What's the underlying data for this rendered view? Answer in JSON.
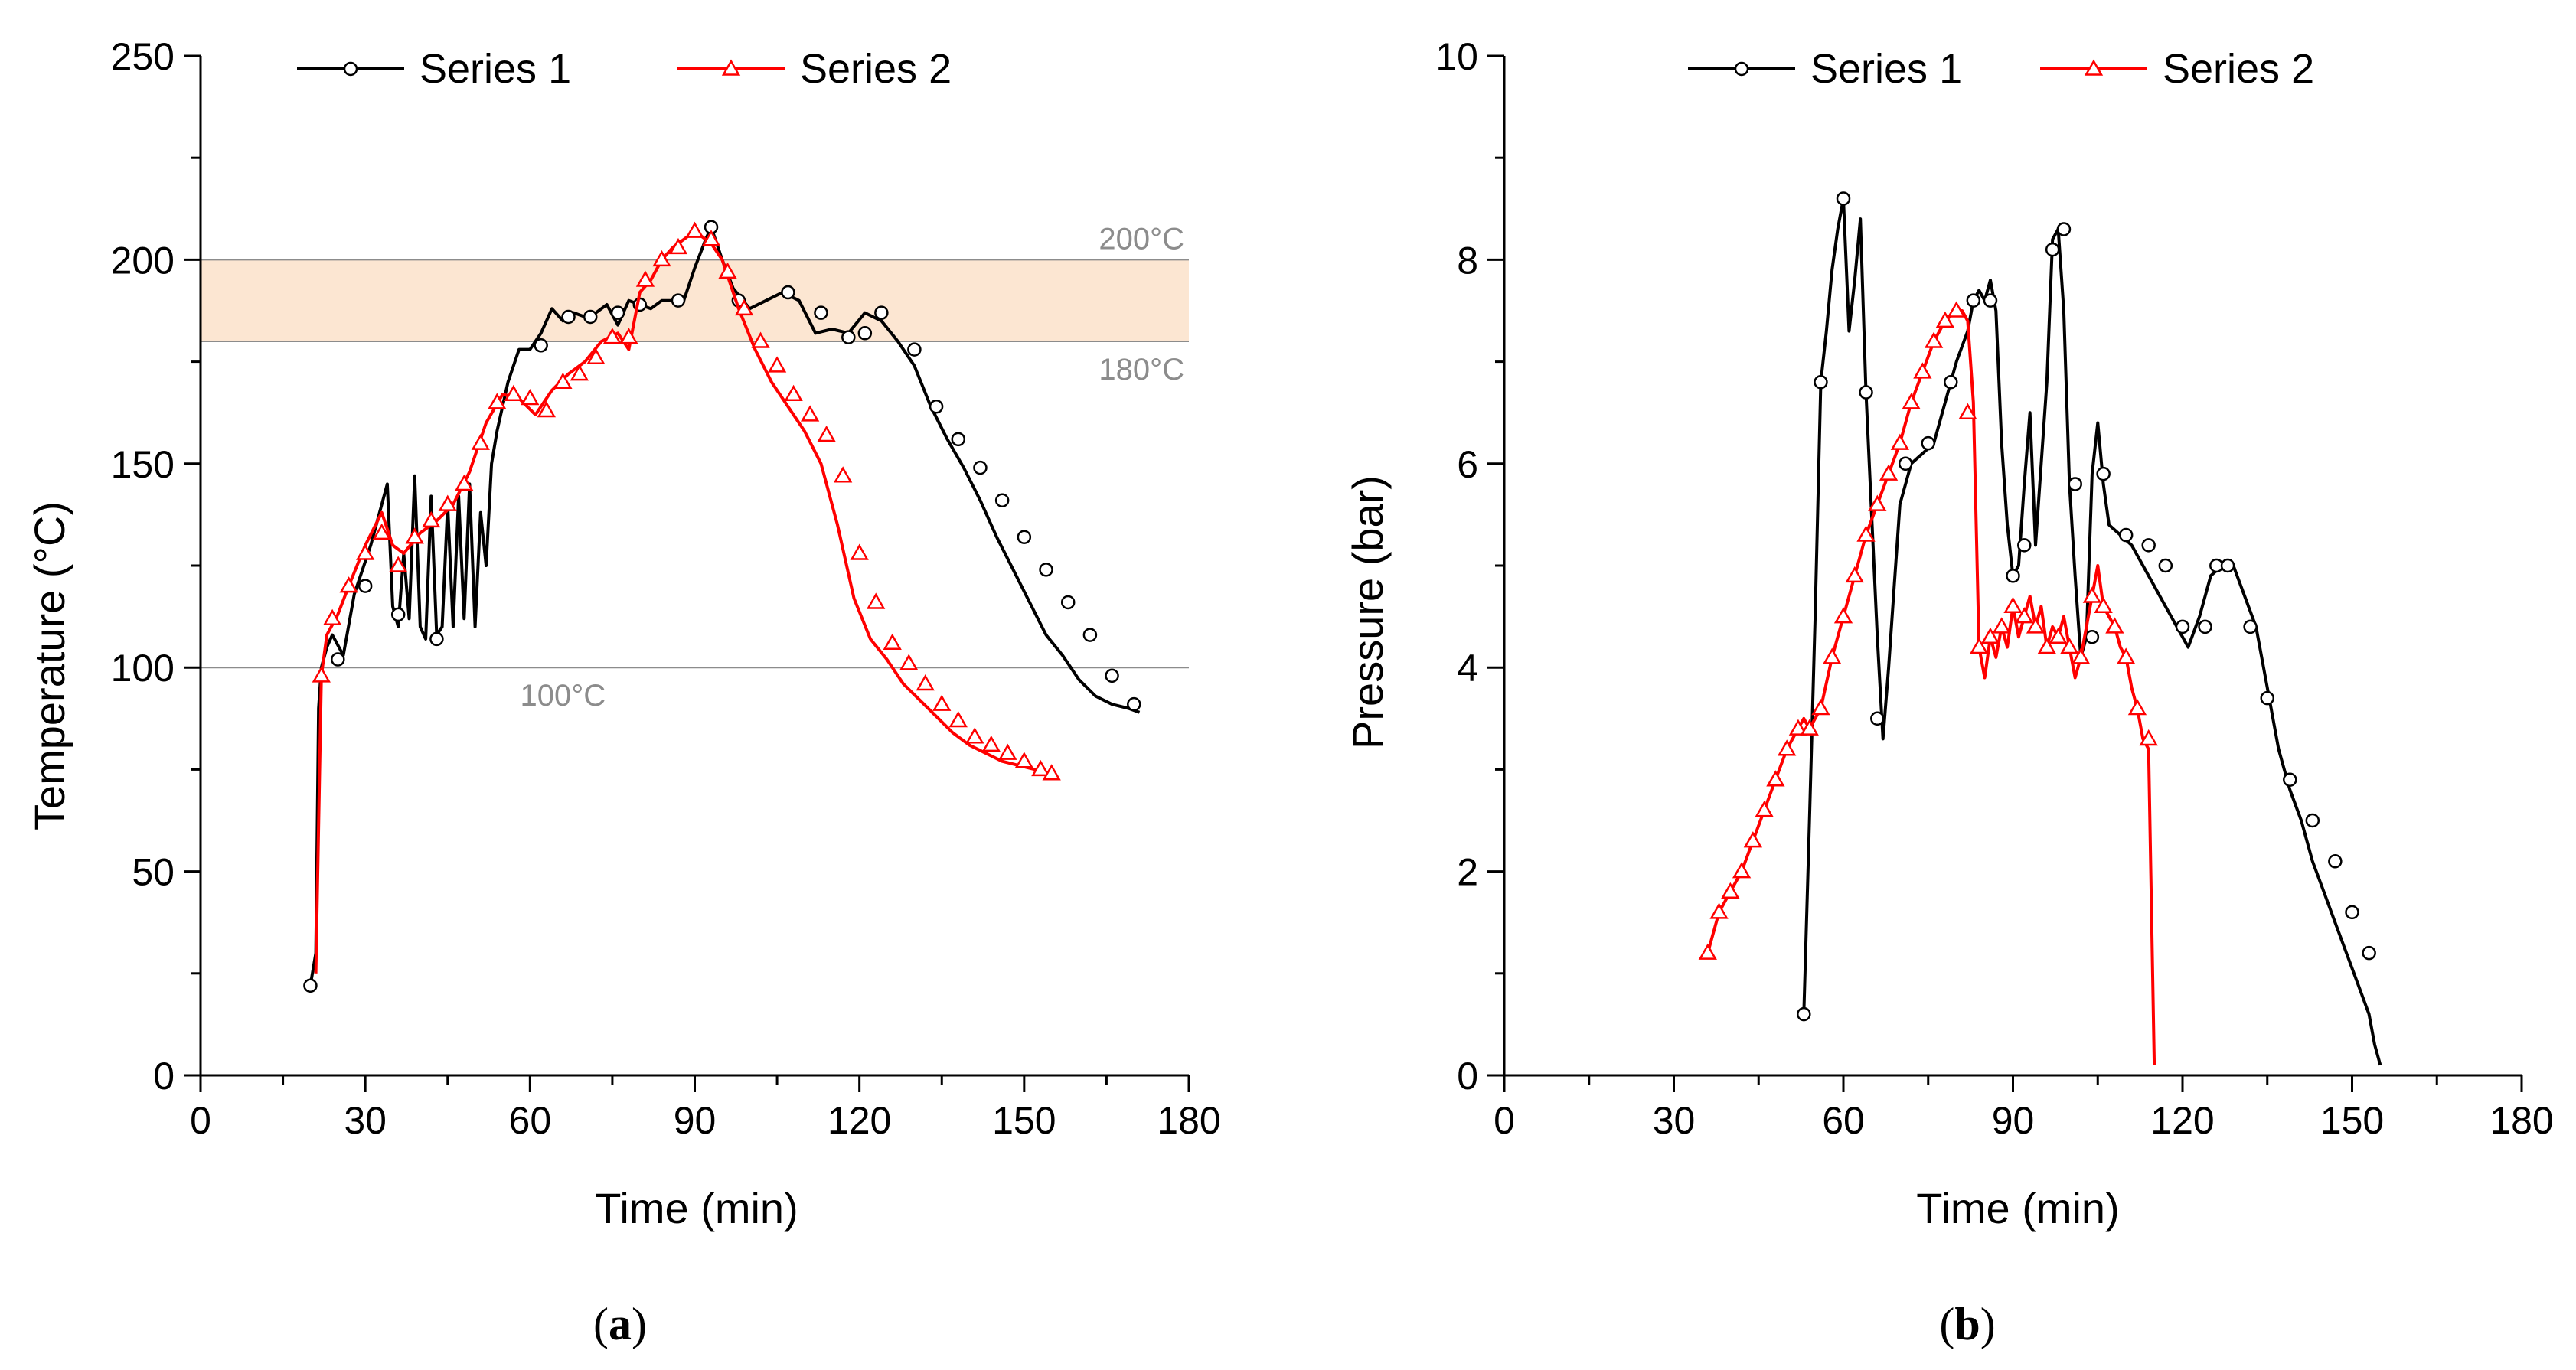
{
  "figure": {
    "panels": [
      {
        "label_open": "(",
        "label_letter": "a",
        "label_close": ")"
      },
      {
        "label_open": "(",
        "label_letter": "b",
        "label_close": ")"
      }
    ]
  },
  "colors": {
    "series1": "#000000",
    "series2": "#ff0000",
    "band_fill": "#fce6d2",
    "reference_line": "#8c8c8c",
    "reference_text": "#8c8c8c"
  },
  "chart_data": [
    {
      "type": "line",
      "panel": "a",
      "xlabel": "Time (min)",
      "ylabel": "Temperature (°C)",
      "xlim": [
        0,
        180
      ],
      "ylim": [
        0,
        250
      ],
      "xticks": [
        0,
        30,
        60,
        90,
        120,
        150,
        180
      ],
      "yticks": [
        0,
        50,
        100,
        150,
        200,
        250
      ],
      "grid": false,
      "legend": "top",
      "band": {
        "y_min": 180,
        "y_max": 200
      },
      "annotations": [
        {
          "value": 200,
          "text": "200°C"
        },
        {
          "value": 180,
          "text": "180°C"
        },
        {
          "value": 100,
          "text": "100°C"
        }
      ],
      "series": [
        {
          "name": "Series 1",
          "marker": "circle",
          "x": [
            20,
            21,
            21.5,
            22,
            23,
            24,
            26,
            28,
            31,
            34,
            35,
            36,
            37,
            38,
            39,
            40,
            41,
            42,
            43,
            44,
            45,
            46,
            47,
            48,
            49,
            50,
            51,
            52,
            53,
            54,
            56,
            58,
            60,
            62,
            64,
            66,
            68,
            70,
            72,
            74,
            76,
            78,
            80,
            82,
            84,
            86,
            88,
            90,
            92,
            93,
            95,
            97,
            100,
            103,
            106,
            109,
            112,
            115,
            118,
            121,
            124,
            127,
            130,
            133,
            136,
            139,
            142,
            145,
            148,
            151,
            154,
            157,
            160,
            163,
            166,
            169,
            171
          ],
          "y": [
            22,
            30,
            90,
            100,
            105,
            108,
            103,
            118,
            130,
            145,
            115,
            110,
            128,
            112,
            147,
            110,
            107,
            142,
            108,
            110,
            140,
            110,
            142,
            112,
            145,
            110,
            138,
            125,
            150,
            158,
            170,
            178,
            178,
            182,
            188,
            185,
            187,
            186,
            187,
            189,
            184,
            190,
            189,
            188,
            190,
            190,
            190,
            198,
            205,
            208,
            200,
            193,
            188,
            190,
            192,
            190,
            182,
            183,
            182,
            187,
            185,
            180,
            174,
            164,
            156,
            149,
            141,
            132,
            124,
            116,
            108,
            103,
            97,
            93,
            91,
            90,
            89
          ],
          "markers_x": [
            20,
            25,
            30,
            36,
            43,
            62,
            67,
            71,
            76,
            80,
            87,
            93,
            98,
            107,
            113,
            118,
            121,
            124,
            130,
            134,
            138,
            142,
            146,
            150,
            154,
            158,
            162,
            166,
            170
          ],
          "markers_y": [
            22,
            102,
            120,
            113,
            107,
            179,
            186,
            186,
            187,
            189,
            190,
            208,
            190,
            192,
            187,
            181,
            182,
            187,
            178,
            164,
            156,
            149,
            141,
            132,
            124,
            116,
            108,
            98,
            91
          ]
        },
        {
          "name": "Series 2",
          "marker": "triangle",
          "x": [
            21,
            22,
            23,
            25,
            27,
            30,
            33,
            35,
            37,
            40,
            43,
            46,
            49,
            52,
            55,
            58,
            61,
            64,
            67,
            70,
            73,
            76,
            78,
            80,
            82,
            84,
            86,
            88,
            90,
            93,
            95,
            98,
            101,
            104,
            107,
            110,
            113,
            116,
            119,
            122,
            125,
            128,
            131,
            134,
            137,
            140,
            143,
            146,
            149,
            152,
            155
          ],
          "y": [
            25,
            98,
            108,
            113,
            120,
            130,
            138,
            130,
            128,
            133,
            136,
            140,
            148,
            160,
            167,
            166,
            162,
            168,
            172,
            175,
            180,
            182,
            178,
            192,
            195,
            200,
            203,
            205,
            207,
            204,
            200,
            188,
            178,
            170,
            164,
            158,
            150,
            135,
            117,
            107,
            102,
            96,
            92,
            88,
            84,
            81,
            79,
            77,
            76,
            75,
            74
          ],
          "markers_x": [
            22,
            24,
            27,
            30,
            33,
            36,
            39,
            42,
            45,
            48,
            51,
            54,
            57,
            60,
            63,
            66,
            69,
            72,
            75,
            78,
            81,
            84,
            87,
            90,
            93,
            96,
            99,
            102,
            105,
            108,
            111,
            114,
            117,
            120,
            123,
            126,
            129,
            132,
            135,
            138,
            141,
            144,
            147,
            150,
            153,
            155
          ],
          "markers_y": [
            98,
            112,
            120,
            128,
            133,
            125,
            132,
            136,
            140,
            145,
            155,
            165,
            167,
            166,
            163,
            170,
            172,
            176,
            181,
            181,
            195,
            200,
            203,
            207,
            205,
            197,
            188,
            180,
            174,
            167,
            162,
            157,
            147,
            128,
            116,
            106,
            101,
            96,
            91,
            87,
            83,
            81,
            79,
            77,
            75,
            74
          ]
        }
      ]
    },
    {
      "type": "line",
      "panel": "b",
      "xlabel": "Time (min)",
      "ylabel": "Pressure (bar)",
      "xlim": [
        0,
        180
      ],
      "ylim": [
        0,
        10
      ],
      "xticks": [
        0,
        30,
        60,
        90,
        120,
        150,
        180
      ],
      "yticks": [
        0,
        2,
        4,
        6,
        8,
        10
      ],
      "grid": false,
      "legend": "top",
      "series": [
        {
          "name": "Series 1",
          "marker": "circle",
          "x": [
            53,
            54,
            55,
            56,
            57,
            58,
            59,
            60,
            61,
            62,
            63,
            64,
            65,
            66,
            67,
            68,
            69,
            70,
            72,
            74,
            76,
            78,
            80,
            82,
            83,
            84,
            85,
            86,
            87,
            88,
            89,
            90,
            91,
            92,
            93,
            94,
            95,
            96,
            97,
            98,
            99,
            100,
            101,
            102,
            103,
            104,
            105,
            106,
            107,
            109,
            111,
            113,
            115,
            117,
            119,
            121,
            123,
            125,
            127,
            129,
            131,
            133,
            135,
            137,
            139,
            141,
            143,
            145,
            147,
            149,
            151,
            153,
            154,
            155
          ],
          "y": [
            0.6,
            2.5,
            4.5,
            6.8,
            7.3,
            7.9,
            8.3,
            8.6,
            7.3,
            7.8,
            8.4,
            6.7,
            5.5,
            4.3,
            3.3,
            4.0,
            4.8,
            5.6,
            6.0,
            6.1,
            6.2,
            6.6,
            7.0,
            7.3,
            7.6,
            7.7,
            7.6,
            7.8,
            7.5,
            6.2,
            5.4,
            4.9,
            5.0,
            5.8,
            6.5,
            5.2,
            6.0,
            6.8,
            8.2,
            8.3,
            7.5,
            5.8,
            4.9,
            4.1,
            4.3,
            5.9,
            6.4,
            5.8,
            5.4,
            5.3,
            5.2,
            5.0,
            4.8,
            4.6,
            4.4,
            4.2,
            4.5,
            4.9,
            5.0,
            5.0,
            4.7,
            4.4,
            3.8,
            3.2,
            2.8,
            2.5,
            2.1,
            1.8,
            1.5,
            1.2,
            0.9,
            0.6,
            0.3,
            0.1
          ],
          "markers_x": [
            53,
            56,
            60,
            64,
            66,
            71,
            75,
            79,
            83,
            86,
            90,
            92,
            97,
            99,
            101,
            104,
            106,
            110,
            114,
            117,
            120,
            124,
            126,
            128,
            132,
            135,
            139,
            143,
            147,
            150,
            153
          ],
          "markers_y": [
            0.6,
            6.8,
            8.6,
            6.7,
            3.5,
            6.0,
            6.2,
            6.8,
            7.6,
            7.6,
            4.9,
            5.2,
            8.1,
            8.3,
            5.8,
            4.3,
            5.9,
            5.3,
            5.2,
            5.0,
            4.4,
            4.4,
            5.0,
            5.0,
            4.4,
            3.7,
            2.9,
            2.5,
            2.1,
            1.6,
            1.2
          ]
        },
        {
          "name": "Series 2",
          "marker": "triangle",
          "x": [
            36,
            38,
            40,
            42,
            44,
            46,
            48,
            50,
            52,
            53,
            54,
            56,
            58,
            60,
            62,
            64,
            66,
            68,
            70,
            72,
            74,
            76,
            78,
            80,
            81,
            82,
            83,
            84,
            85,
            86,
            87,
            88,
            89,
            90,
            91,
            92,
            93,
            94,
            95,
            96,
            97,
            98,
            99,
            100,
            101,
            102,
            103,
            104,
            105,
            106,
            107,
            108,
            109,
            110,
            111,
            112,
            113,
            114,
            115
          ],
          "y": [
            1.2,
            1.6,
            1.8,
            2.0,
            2.3,
            2.6,
            2.9,
            3.2,
            3.4,
            3.5,
            3.4,
            3.6,
            4.1,
            4.5,
            4.9,
            5.3,
            5.6,
            5.9,
            6.2,
            6.6,
            6.9,
            7.2,
            7.4,
            7.5,
            7.5,
            7.4,
            6.6,
            4.2,
            3.9,
            4.3,
            4.1,
            4.4,
            4.2,
            4.6,
            4.3,
            4.5,
            4.7,
            4.4,
            4.6,
            4.2,
            4.4,
            4.3,
            4.5,
            4.2,
            3.9,
            4.1,
            4.4,
            4.7,
            5.0,
            4.6,
            4.5,
            4.4,
            4.2,
            4.1,
            3.8,
            3.6,
            3.3,
            3.2,
            0.1
          ],
          "markers_x": [
            36,
            38,
            40,
            42,
            44,
            46,
            48,
            50,
            52,
            54,
            56,
            58,
            60,
            62,
            64,
            66,
            68,
            70,
            72,
            74,
            76,
            78,
            80,
            82,
            84,
            86,
            88,
            90,
            92,
            94,
            96,
            98,
            100,
            102,
            104,
            106,
            108,
            110,
            112,
            114
          ],
          "markers_y": [
            1.2,
            1.6,
            1.8,
            2.0,
            2.3,
            2.6,
            2.9,
            3.2,
            3.4,
            3.4,
            3.6,
            4.1,
            4.5,
            4.9,
            5.3,
            5.6,
            5.9,
            6.2,
            6.6,
            6.9,
            7.2,
            7.4,
            7.5,
            6.5,
            4.2,
            4.3,
            4.4,
            4.6,
            4.5,
            4.4,
            4.2,
            4.3,
            4.2,
            4.1,
            4.7,
            4.6,
            4.4,
            4.1,
            3.6,
            3.3
          ]
        }
      ]
    }
  ]
}
